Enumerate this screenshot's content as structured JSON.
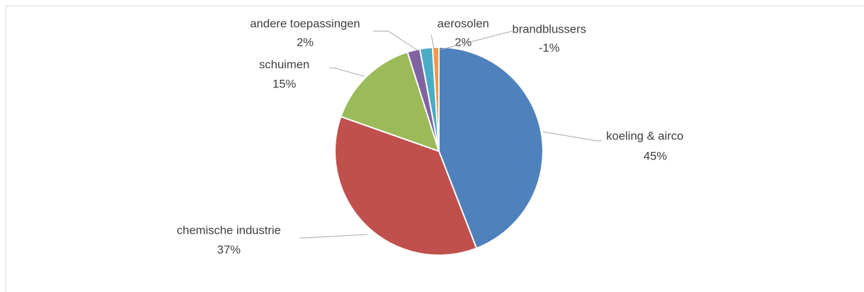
{
  "chart_data": {
    "type": "pie",
    "categories": [
      "koeling & airco",
      "chemische industrie",
      "schuimen",
      "andere toepassingen",
      "aerosolen",
      "brandblussers"
    ],
    "values": [
      45,
      37,
      15,
      2,
      2,
      -1
    ],
    "value_labels": [
      "45%",
      "37%",
      "15%",
      "2%",
      "2%",
      "-1%"
    ],
    "colors": [
      "#4f81bd",
      "#c0504d",
      "#9bbb59",
      "#8064a2",
      "#4bacc6",
      "#f79646"
    ]
  }
}
